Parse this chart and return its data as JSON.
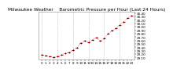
{
  "title": "Milwaukee Weather    Barometric Pressure per Hour (Last 24 Hours)",
  "hours": [
    0,
    1,
    2,
    3,
    4,
    5,
    6,
    7,
    8,
    9,
    10,
    11,
    12,
    13,
    14,
    15,
    16,
    17,
    18,
    19,
    20,
    21,
    22,
    23
  ],
  "pressure": [
    29.18,
    29.15,
    29.12,
    29.1,
    29.14,
    29.18,
    29.22,
    29.25,
    29.32,
    29.38,
    29.52,
    29.58,
    29.55,
    29.62,
    29.68,
    29.58,
    29.65,
    29.8,
    29.88,
    29.95,
    30.05,
    30.15,
    30.25,
    30.32
  ],
  "ylim_min": 29.05,
  "ylim_max": 30.45,
  "ytick_min": 29.1,
  "ytick_max": 30.4,
  "ytick_step": 0.1,
  "bg_color": "#ffffff",
  "grid_color": "#aaaaaa",
  "dot_color": "#000000",
  "line_color": "#ff0000",
  "title_fontsize": 4.2,
  "tick_fontsize": 3.0
}
